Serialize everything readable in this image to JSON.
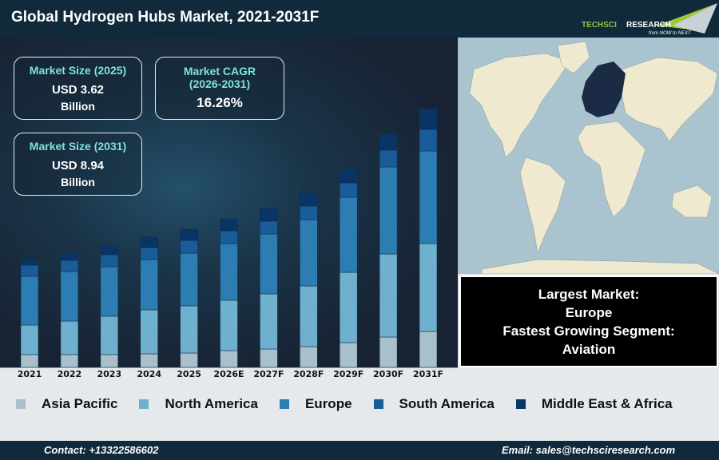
{
  "header": {
    "title": "Global Hydrogen Hubs Market, 2021-2031F",
    "logo_text": "TechSci Research",
    "logo_tagline": "from NOW to NEXT"
  },
  "cards": [
    {
      "label": "Market Size (2025)",
      "value": "USD 3.62",
      "unit": "Billion"
    },
    {
      "label": "Market CAGR",
      "label2": "(2026-2031)",
      "value": "16.26%"
    },
    {
      "label": "Market Size (2031)",
      "value": "USD 8.94",
      "unit": "Billion"
    }
  ],
  "insight": {
    "line1": "Largest Market:",
    "line2": "Europe",
    "line3": "Fastest Growing Segment:",
    "line4": "Aviation"
  },
  "map": {
    "highlight_region": "Europe",
    "highlight_color": "#1c2b45",
    "land_color": "#efe9cf",
    "ocean_color": "#a9c3cf"
  },
  "chart_data": {
    "type": "bar",
    "stacked": true,
    "title": "",
    "xlabel": "",
    "ylabel": "",
    "grid": false,
    "legend_position": "bottom",
    "categories": [
      "2021",
      "2022",
      "2023",
      "2024",
      "2025",
      "2026E",
      "2027F",
      "2028F",
      "2029F",
      "2030F",
      "2031F"
    ],
    "series": [
      {
        "name": "Asia Pacific",
        "color": "#a9bfcc",
        "values": [
          16,
          16,
          16,
          17,
          18,
          21,
          23,
          26,
          31,
          38,
          45
        ]
      },
      {
        "name": "North America",
        "color": "#6fb0cf",
        "values": [
          37,
          42,
          48,
          55,
          59,
          63,
          69,
          76,
          88,
          104,
          110
        ]
      },
      {
        "name": "Europe",
        "color": "#2c7db2",
        "values": [
          61,
          62,
          62,
          63,
          66,
          71,
          75,
          83,
          94,
          109,
          116
        ]
      },
      {
        "name": "South America",
        "color": "#1a5b9a",
        "values": [
          14,
          14,
          15,
          15,
          16,
          16,
          16,
          17,
          18,
          21,
          27
        ]
      },
      {
        "name": "Middle East & Africa",
        "color": "#083466",
        "values": [
          7,
          9,
          11,
          13,
          14,
          15,
          16,
          16,
          17,
          20,
          26
        ]
      }
    ]
  },
  "footer": {
    "contact": "Contact: +13322586602",
    "email": "Email: sales@techsciresearch.com"
  }
}
